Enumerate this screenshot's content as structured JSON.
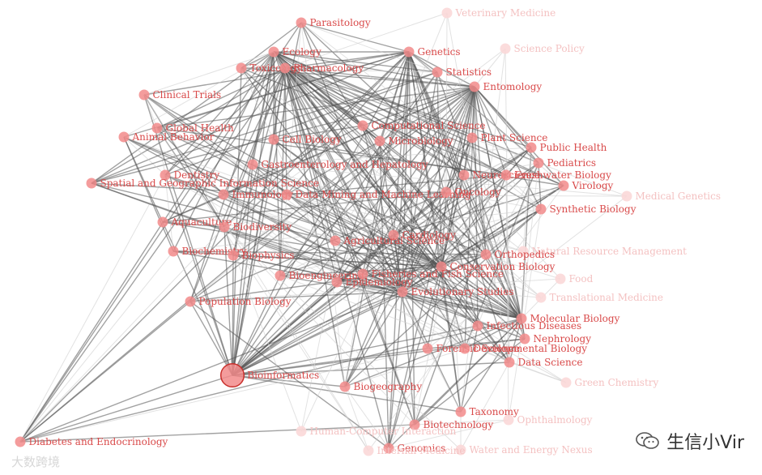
{
  "network": {
    "nodes": [
      {
        "id": "Parasitology",
        "size": 1,
        "weight": "strong"
      },
      {
        "id": "Veterinary Medicine",
        "size": 1,
        "weight": "faint"
      },
      {
        "id": "Ecology",
        "size": 1,
        "weight": "strong"
      },
      {
        "id": "Toxicology",
        "size": 1,
        "weight": "strong"
      },
      {
        "id": "Pharmacology",
        "size": 1,
        "weight": "strong"
      },
      {
        "id": "Genetics",
        "size": 1,
        "weight": "strong"
      },
      {
        "id": "Science Policy",
        "size": 1,
        "weight": "faint"
      },
      {
        "id": "Statistics",
        "size": 1,
        "weight": "strong"
      },
      {
        "id": "Entomology",
        "size": 1,
        "weight": "strong"
      },
      {
        "id": "Clinical Trials",
        "size": 1,
        "weight": "strong"
      },
      {
        "id": "Global Health",
        "size": 1,
        "weight": "strong"
      },
      {
        "id": "Animal Behavior",
        "size": 1,
        "weight": "strong"
      },
      {
        "id": "Cell Biology",
        "size": 1,
        "weight": "strong"
      },
      {
        "id": "Computational Science",
        "size": 1,
        "weight": "strong"
      },
      {
        "id": "Microbiology",
        "size": 1,
        "weight": "strong"
      },
      {
        "id": "Plant Science",
        "size": 1,
        "weight": "strong"
      },
      {
        "id": "Public Health",
        "size": 1,
        "weight": "strong"
      },
      {
        "id": "Pediatrics",
        "size": 1,
        "weight": "strong"
      },
      {
        "id": "Gastroenterology and Hepatology",
        "size": 1,
        "weight": "strong"
      },
      {
        "id": "Dentistry",
        "size": 1,
        "weight": "strong"
      },
      {
        "id": "Spatial and Geographic Information Science",
        "size": 1,
        "weight": "strong"
      },
      {
        "id": "Neuroscience",
        "size": 1,
        "weight": "strong"
      },
      {
        "id": "Freshwater Biology",
        "size": 1,
        "weight": "strong"
      },
      {
        "id": "Virology",
        "size": 1,
        "weight": "strong"
      },
      {
        "id": "Immunology",
        "size": 1,
        "weight": "strong"
      },
      {
        "id": "Data Mining and Machine Learning",
        "size": 1,
        "weight": "strong"
      },
      {
        "id": "Oncology",
        "size": 1,
        "weight": "strong"
      },
      {
        "id": "Medical Genetics",
        "size": 1,
        "weight": "faint"
      },
      {
        "id": "Synthetic Biology",
        "size": 1,
        "weight": "strong"
      },
      {
        "id": "Aquaculture",
        "size": 1,
        "weight": "strong"
      },
      {
        "id": "Biodiversity",
        "size": 1,
        "weight": "strong"
      },
      {
        "id": "Cardiology",
        "size": 1,
        "weight": "strong"
      },
      {
        "id": "Agricultural Science",
        "size": 1,
        "weight": "strong"
      },
      {
        "id": "Natural Resource Management",
        "size": 1,
        "weight": "faint"
      },
      {
        "id": "Biochemistry",
        "size": 1,
        "weight": "strong"
      },
      {
        "id": "Biophysics",
        "size": 1,
        "weight": "strong"
      },
      {
        "id": "Orthopedics",
        "size": 1,
        "weight": "strong"
      },
      {
        "id": "Conservation Biology",
        "size": 1,
        "weight": "strong"
      },
      {
        "id": "Bioengineering",
        "size": 1,
        "weight": "strong"
      },
      {
        "id": "Fisheries and Fish Science",
        "size": 1,
        "weight": "strong"
      },
      {
        "id": "Epidemiology",
        "size": 1,
        "weight": "strong"
      },
      {
        "id": "Food",
        "size": 1,
        "weight": "faint"
      },
      {
        "id": "Evolutionary Studies",
        "size": 1,
        "weight": "strong"
      },
      {
        "id": "Translational Medicine",
        "size": 1,
        "weight": "faint"
      },
      {
        "id": "Population Biology",
        "size": 1,
        "weight": "strong"
      },
      {
        "id": "Molecular Biology",
        "size": 1,
        "weight": "strong"
      },
      {
        "id": "Infectious Diseases",
        "size": 1,
        "weight": "strong"
      },
      {
        "id": "Nephrology",
        "size": 1,
        "weight": "strong"
      },
      {
        "id": "Forensic Science",
        "size": 1,
        "weight": "strong"
      },
      {
        "id": "Developmental Biology",
        "size": 1,
        "weight": "strong"
      },
      {
        "id": "Data Science",
        "size": 1,
        "weight": "strong"
      },
      {
        "id": "Bioinformatics",
        "size": 2.2,
        "weight": "strong"
      },
      {
        "id": "Green Chemistry",
        "size": 1,
        "weight": "faint"
      },
      {
        "id": "Biogeography",
        "size": 1,
        "weight": "strong"
      },
      {
        "id": "Taxonomy",
        "size": 1,
        "weight": "strong"
      },
      {
        "id": "Ophthalmology",
        "size": 1,
        "weight": "faint"
      },
      {
        "id": "Biotechnology",
        "size": 1,
        "weight": "strong"
      },
      {
        "id": "Diabetes and Endocrinology",
        "size": 1,
        "weight": "strong"
      },
      {
        "id": "Genomics",
        "size": 1,
        "weight": "strong"
      },
      {
        "id": "Water and Energy Nexus",
        "size": 1,
        "weight": "faint"
      },
      {
        "id": "Human-Computer Interaction",
        "size": 1,
        "weight": "faint"
      },
      {
        "id": "Internal Medicine",
        "size": 1,
        "weight": "faint"
      }
    ],
    "colors": {
      "node_strong": "#f28b8b",
      "node_faint": "#fbd8d8",
      "label_strong": "#d94a4a",
      "label_faint": "#f4c2c2",
      "edge_strong": "#555555",
      "edge_faint": "#cfcfcf"
    }
  },
  "watermark": {
    "left_text": "大数跨境",
    "right_text": "生信小Vir",
    "right_icon": "wechat-icon"
  }
}
